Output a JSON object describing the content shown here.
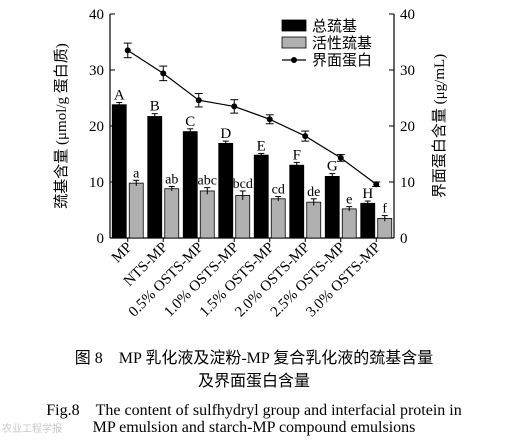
{
  "chart_data": {
    "type": "bar",
    "categories": [
      "MP",
      "NTS-MP",
      "0.5% OSTS-MP",
      "1.0% OSTS-MP",
      "1.5% OSTS-MP",
      "2.0% OSTS-MP",
      "2.5% OSTS-MP",
      "3.0% OSTS-MP"
    ],
    "ylabel": "巯基含量 (μmol/g 蛋白质)",
    "y2label": "界面蛋白含量 (μg/mL)",
    "ylim": [
      0,
      40
    ],
    "y2lim": [
      0,
      40
    ],
    "yticks": [
      0,
      10,
      20,
      30,
      40
    ],
    "legend_position": "top-right",
    "series": [
      {
        "name": "总巯基",
        "kind": "bar",
        "color": "#000000",
        "values": [
          23.8,
          21.7,
          19.0,
          16.9,
          14.8,
          13.0,
          11.0,
          6.2
        ],
        "errors": [
          0.4,
          0.5,
          0.5,
          0.4,
          0.3,
          0.5,
          0.5,
          0.4
        ],
        "letters": [
          "A",
          "B",
          "C",
          "D",
          "E",
          "F",
          "G",
          "H"
        ]
      },
      {
        "name": "活性巯基",
        "kind": "bar",
        "color": "#b0b0b0",
        "values": [
          9.8,
          8.8,
          8.4,
          7.6,
          7.0,
          6.4,
          5.2,
          3.5
        ],
        "errors": [
          0.5,
          0.4,
          0.6,
          0.8,
          0.4,
          0.6,
          0.4,
          0.5
        ],
        "letters": [
          "a",
          "ab",
          "abc",
          "bcd",
          "cd",
          "de",
          "e",
          "f"
        ]
      },
      {
        "name": "界面蛋白",
        "kind": "line",
        "axis": "right",
        "color": "#000000",
        "values": [
          33.5,
          29.4,
          24.6,
          23.5,
          21.2,
          18.2,
          14.3,
          9.6
        ],
        "errors": [
          1.3,
          1.3,
          1.2,
          1.2,
          0.8,
          0.9,
          0.6,
          0.4
        ]
      }
    ]
  },
  "caption": {
    "cn_line1": "图 8　MP 乳化液及淀粉-MP 复合乳化液的巯基含量",
    "cn_line2": "及界面蛋白含量",
    "en_line1": "Fig.8　The content of sulfhydryl group and interfacial protein in",
    "en_line2": "MP emulsion and starch-MP compound emulsions"
  },
  "watermark": "农业工程学报"
}
